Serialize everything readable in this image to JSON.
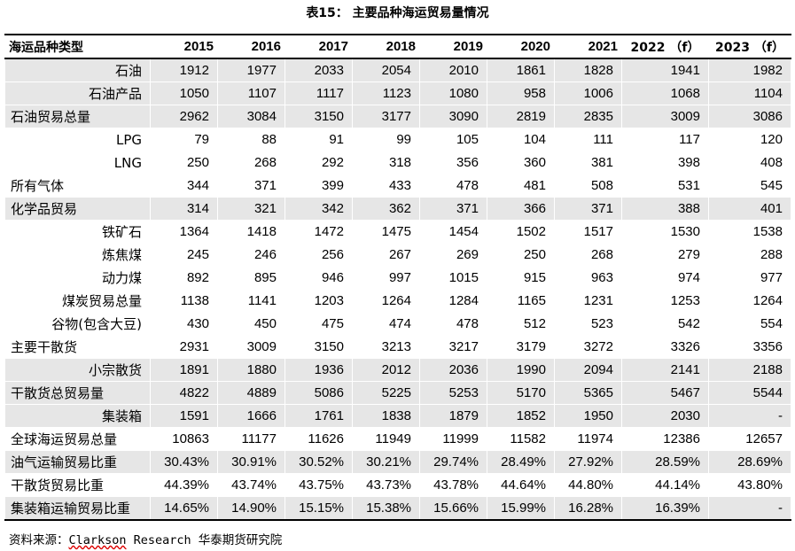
{
  "title": "表15：  主要品种海运贸易量情况",
  "table": {
    "header": [
      "海运品种类型",
      "2015",
      "2016",
      "2017",
      "2018",
      "2019",
      "2020",
      "2021",
      "2022 （f）",
      "2023 （f）"
    ],
    "rows": [
      {
        "label": "石油",
        "align": "right",
        "shade": true,
        "values": [
          "1912",
          "1977",
          "2033",
          "2054",
          "2010",
          "1861",
          "1828",
          "1941",
          "1982"
        ]
      },
      {
        "label": "石油产品",
        "align": "right",
        "shade": true,
        "values": [
          "1050",
          "1107",
          "1117",
          "1123",
          "1080",
          "958",
          "1006",
          "1068",
          "1104"
        ]
      },
      {
        "label": "石油贸易总量",
        "align": "left",
        "shade": true,
        "values": [
          "2962",
          "3084",
          "3150",
          "3177",
          "3090",
          "2819",
          "2835",
          "3009",
          "3086"
        ]
      },
      {
        "label": "LPG",
        "align": "right",
        "shade": false,
        "values": [
          "79",
          "88",
          "91",
          "99",
          "105",
          "104",
          "111",
          "117",
          "120"
        ]
      },
      {
        "label": "LNG",
        "align": "right",
        "shade": false,
        "values": [
          "250",
          "268",
          "292",
          "318",
          "356",
          "360",
          "381",
          "398",
          "408"
        ]
      },
      {
        "label": "所有气体",
        "align": "left",
        "shade": false,
        "values": [
          "344",
          "371",
          "399",
          "433",
          "478",
          "481",
          "508",
          "531",
          "545"
        ]
      },
      {
        "label": "化学品贸易",
        "align": "left",
        "shade": true,
        "values": [
          "314",
          "321",
          "342",
          "362",
          "371",
          "366",
          "371",
          "388",
          "401"
        ]
      },
      {
        "label": "铁矿石",
        "align": "right",
        "shade": false,
        "values": [
          "1364",
          "1418",
          "1472",
          "1475",
          "1454",
          "1502",
          "1517",
          "1530",
          "1538"
        ]
      },
      {
        "label": "炼焦煤",
        "align": "right",
        "shade": false,
        "values": [
          "245",
          "246",
          "256",
          "267",
          "269",
          "250",
          "268",
          "279",
          "288"
        ]
      },
      {
        "label": "动力煤",
        "align": "right",
        "shade": false,
        "values": [
          "892",
          "895",
          "946",
          "997",
          "1015",
          "915",
          "963",
          "974",
          "977"
        ]
      },
      {
        "label": "煤炭贸易总量",
        "align": "right",
        "shade": false,
        "values": [
          "1138",
          "1141",
          "1203",
          "1264",
          "1284",
          "1165",
          "1231",
          "1253",
          "1264"
        ]
      },
      {
        "label": "谷物(包含大豆)",
        "align": "right",
        "shade": false,
        "values": [
          "430",
          "450",
          "475",
          "474",
          "478",
          "512",
          "523",
          "542",
          "554"
        ]
      },
      {
        "label": "主要干散货",
        "align": "left",
        "shade": false,
        "values": [
          "2931",
          "3009",
          "3150",
          "3213",
          "3217",
          "3179",
          "3272",
          "3326",
          "3356"
        ]
      },
      {
        "label": "小宗散货",
        "align": "right",
        "shade": true,
        "values": [
          "1891",
          "1880",
          "1936",
          "2012",
          "2036",
          "1990",
          "2094",
          "2141",
          "2188"
        ]
      },
      {
        "label": "干散货总贸易量",
        "align": "left",
        "shade": true,
        "values": [
          "4822",
          "4889",
          "5086",
          "5225",
          "5253",
          "5170",
          "5365",
          "5467",
          "5544"
        ]
      },
      {
        "label": "集装箱",
        "align": "right",
        "shade": true,
        "values": [
          "1591",
          "1666",
          "1761",
          "1838",
          "1879",
          "1852",
          "1950",
          "2030",
          "-"
        ]
      },
      {
        "label": "全球海运贸易总量",
        "align": "left",
        "shade": false,
        "values": [
          "10863",
          "11177",
          "11626",
          "11949",
          "11999",
          "11582",
          "11974",
          "12386",
          "12657"
        ]
      },
      {
        "label": "油气运输贸易比重",
        "align": "left",
        "shade": true,
        "values": [
          "30.43%",
          "30.91%",
          "30.52%",
          "30.21%",
          "29.74%",
          "28.49%",
          "27.92%",
          "28.59%",
          "28.69%"
        ]
      },
      {
        "label": "干散货贸易比重",
        "align": "left",
        "shade": false,
        "values": [
          "44.39%",
          "43.74%",
          "43.75%",
          "43.73%",
          "43.78%",
          "44.64%",
          "44.80%",
          "44.14%",
          "43.80%"
        ]
      },
      {
        "label": "集装箱运输贸易比重",
        "align": "left",
        "shade": true,
        "values": [
          "14.65%",
          "14.90%",
          "15.15%",
          "15.38%",
          "15.66%",
          "15.99%",
          "16.28%",
          "16.39%",
          "-"
        ]
      }
    ]
  },
  "footer": {
    "prefix": "资料来源：",
    "source": "Clarkson",
    "rest": " Research 华泰期货研究院"
  },
  "colors": {
    "row_shade": "#e6e6e6",
    "rule": "#000000"
  }
}
